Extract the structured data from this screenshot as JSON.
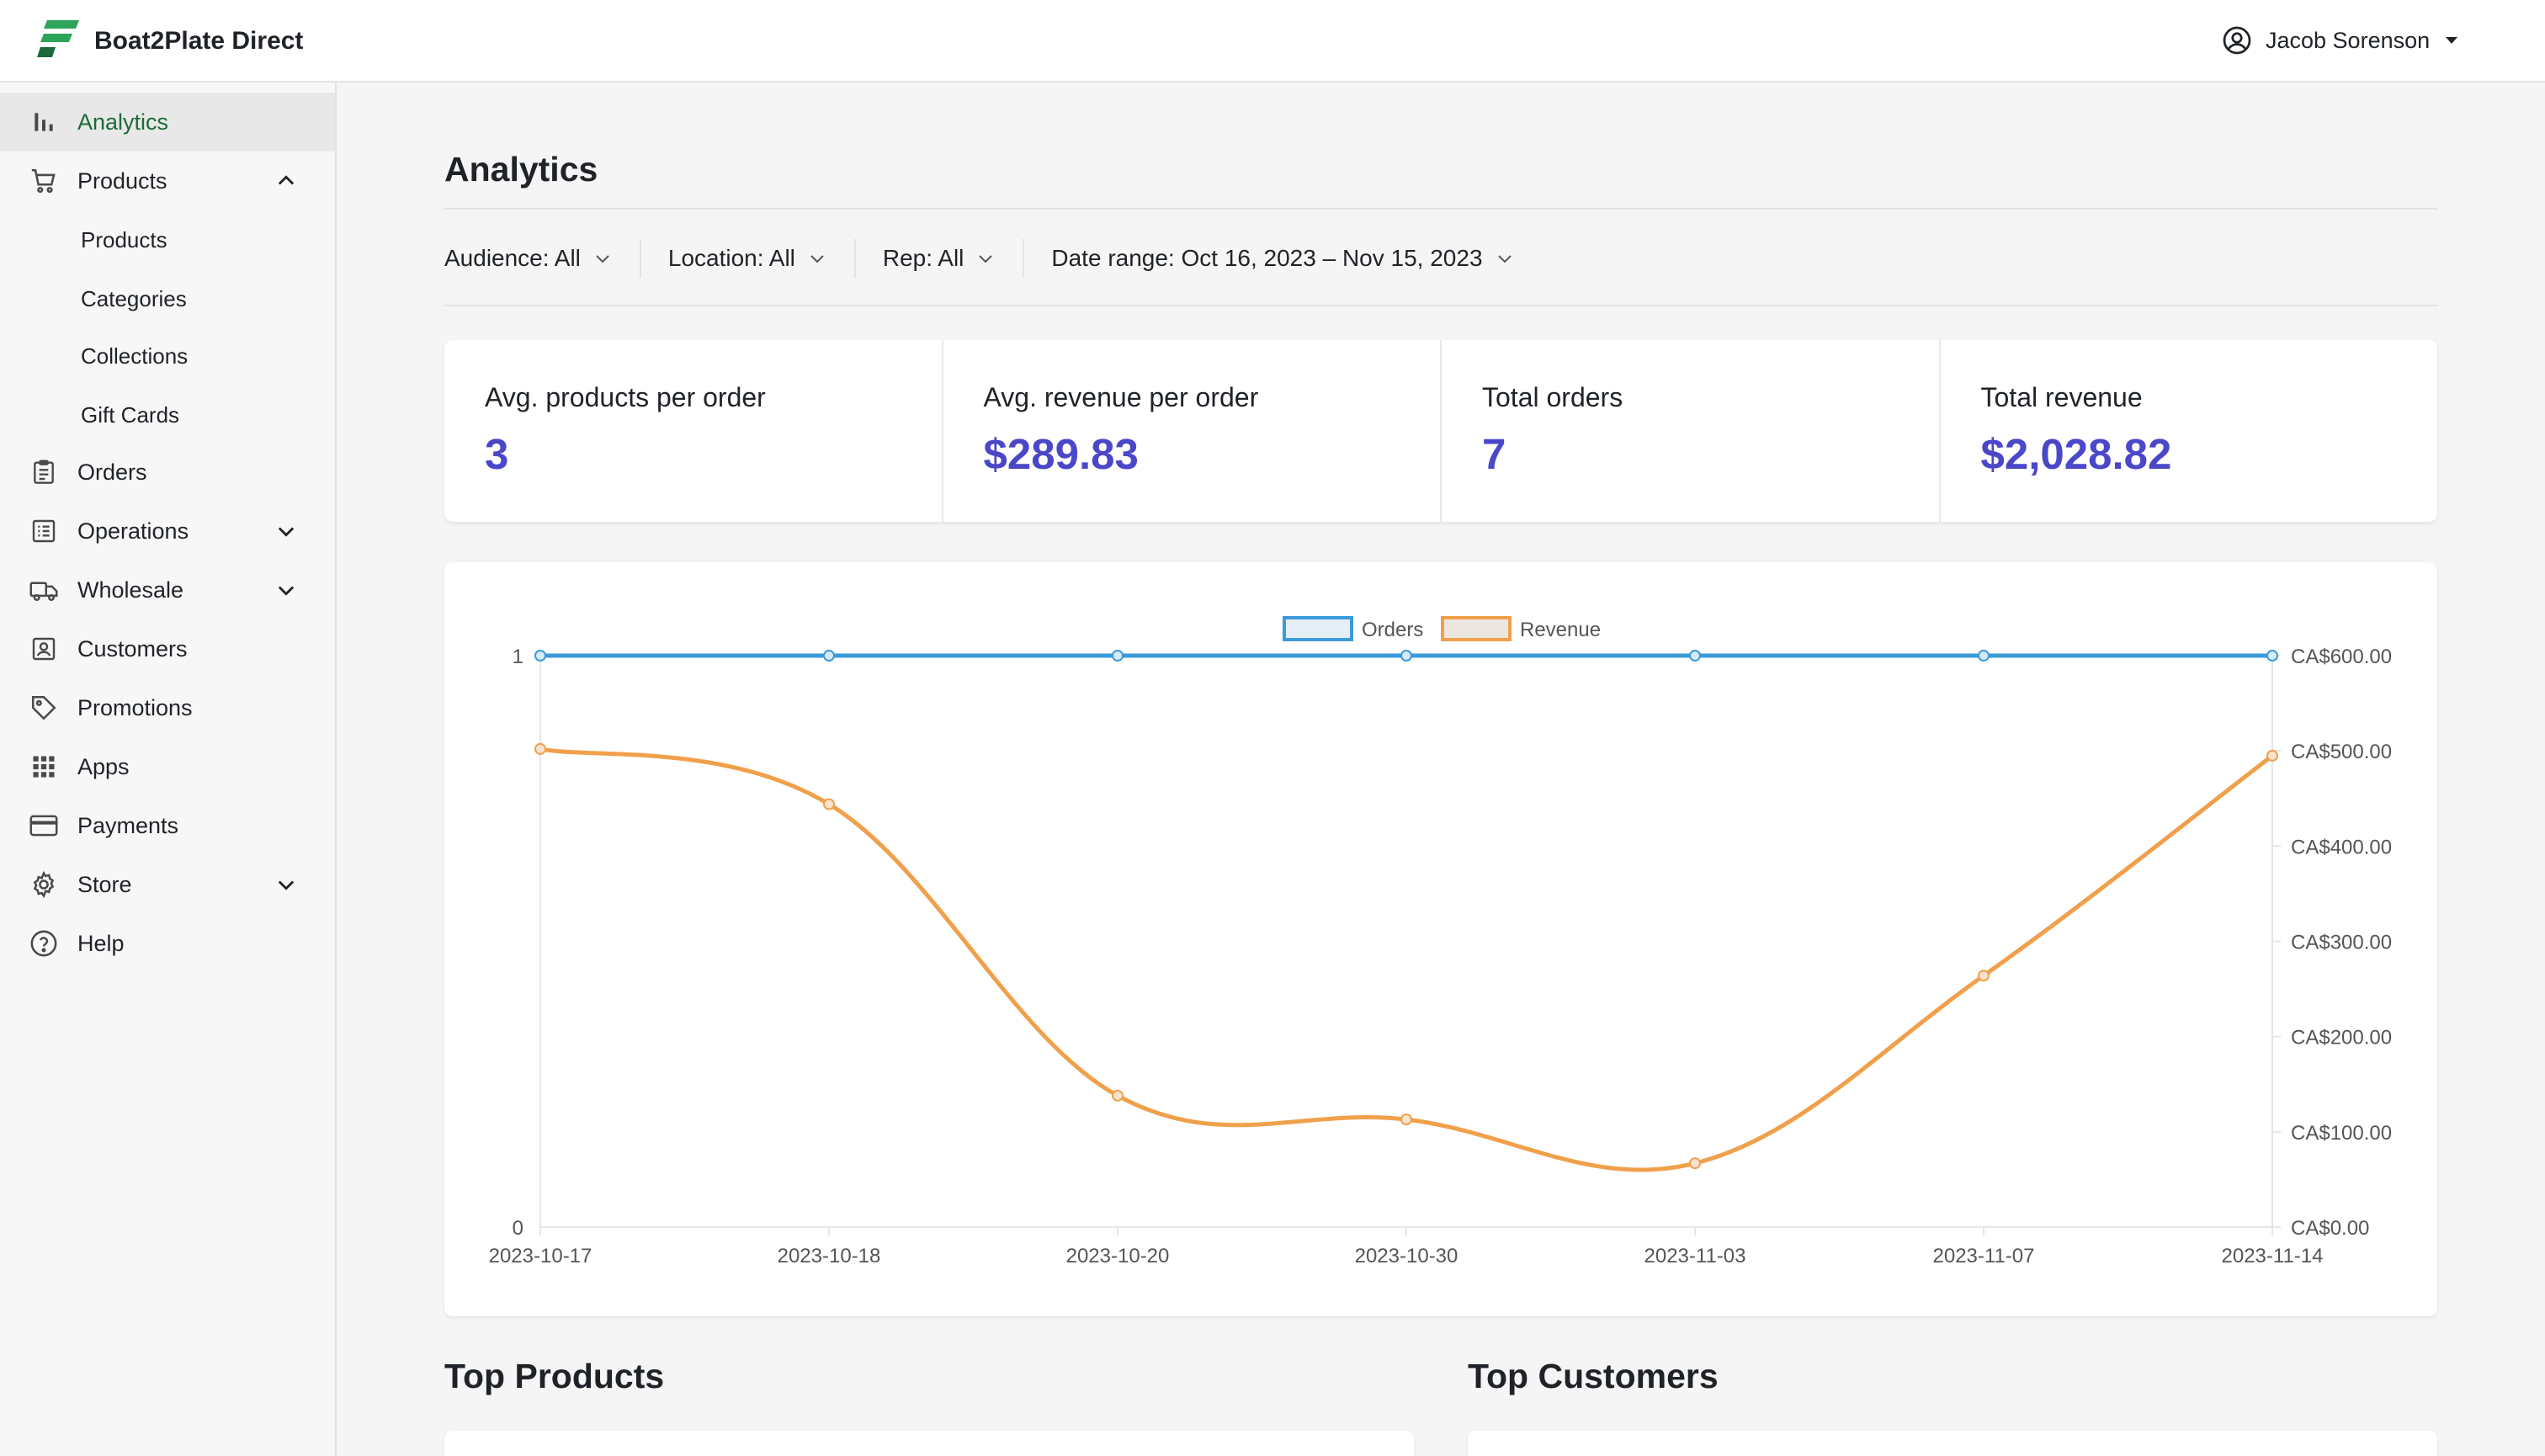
{
  "header": {
    "brand": "Boat2Plate Direct",
    "user_name": "Jacob Sorenson"
  },
  "sidebar": {
    "items": [
      {
        "key": "analytics",
        "label": "Analytics",
        "icon": "bar-chart-icon",
        "active": true
      },
      {
        "key": "products",
        "label": "Products",
        "icon": "cart-icon",
        "expanded": true
      },
      {
        "key": "orders",
        "label": "Orders",
        "icon": "clipboard-icon"
      },
      {
        "key": "operations",
        "label": "Operations",
        "icon": "list-icon",
        "expanded": false
      },
      {
        "key": "wholesale",
        "label": "Wholesale",
        "icon": "truck-icon",
        "expanded": false
      },
      {
        "key": "customers",
        "label": "Customers",
        "icon": "person-card-icon"
      },
      {
        "key": "promotions",
        "label": "Promotions",
        "icon": "tag-icon"
      },
      {
        "key": "apps",
        "label": "Apps",
        "icon": "grid-icon"
      },
      {
        "key": "payments",
        "label": "Payments",
        "icon": "credit-card-icon"
      },
      {
        "key": "store",
        "label": "Store",
        "icon": "gear-icon",
        "expanded": false
      },
      {
        "key": "help",
        "label": "Help",
        "icon": "help-circle-icon"
      }
    ],
    "product_subitems": [
      "Products",
      "Categories",
      "Collections",
      "Gift Cards"
    ]
  },
  "page": {
    "title": "Analytics"
  },
  "filters": {
    "audience": "Audience: All",
    "location": "Location: All",
    "rep": "Rep: All",
    "date_range": "Date range: Oct 16, 2023 – Nov 15, 2023"
  },
  "stats": [
    {
      "label": "Avg. products per order",
      "value": "3"
    },
    {
      "label": "Avg. revenue per order",
      "value": "$289.83"
    },
    {
      "label": "Total orders",
      "value": "7"
    },
    {
      "label": "Total revenue",
      "value": "$2,028.82"
    }
  ],
  "colors": {
    "accent": "#4b47c9",
    "active_nav": "#1d6b3a",
    "orders_line": "#3b9ad9",
    "revenue_line": "#f0a04b"
  },
  "chart_data": {
    "type": "line",
    "x": [
      "2023-10-17",
      "2023-10-18",
      "2023-10-20",
      "2023-10-30",
      "2023-11-03",
      "2023-11-07",
      "2023-11-14"
    ],
    "series": [
      {
        "name": "Orders",
        "axis": "left",
        "values": [
          1,
          1,
          1,
          1,
          1,
          1,
          1
        ]
      },
      {
        "name": "Revenue",
        "axis": "right",
        "values": [
          502,
          444,
          138,
          113,
          67,
          264,
          495
        ]
      }
    ],
    "y_left": {
      "ylim": [
        0,
        1
      ],
      "ticks": [
        "0",
        "1"
      ]
    },
    "y_right": {
      "ylim": [
        0,
        600
      ],
      "ticks": [
        "CA$0.00",
        "CA$100.00",
        "CA$200.00",
        "CA$300.00",
        "CA$400.00",
        "CA$500.00",
        "CA$600.00"
      ]
    },
    "legend": "top-center",
    "grid": false
  },
  "sections": {
    "top_products": "Top Products",
    "top_customers": "Top Customers"
  }
}
